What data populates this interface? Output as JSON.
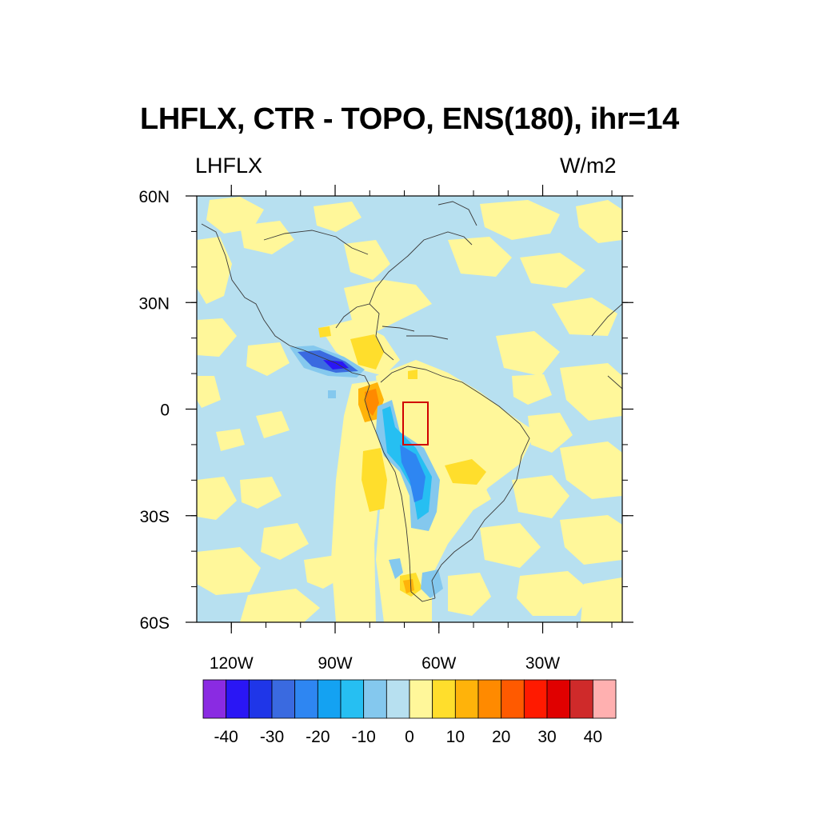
{
  "title": "LHFLX, CTR - TOPO, ENS(180), ihr=14",
  "left_subtitle": "LHFLX",
  "right_subtitle": "W/m2",
  "map": {
    "projection": "cylindrical equidistant",
    "lon_range": [
      -130,
      -7
    ],
    "lat_range": [
      -60,
      60
    ],
    "x_ticks": [
      {
        "lon": -120,
        "label": "120W"
      },
      {
        "lon": -90,
        "label": "90W"
      },
      {
        "lon": -60,
        "label": "60W"
      },
      {
        "lon": -30,
        "label": "30W"
      }
    ],
    "y_ticks": [
      {
        "lat": 60,
        "label": "60N"
      },
      {
        "lat": 30,
        "label": "30N"
      },
      {
        "lat": 0,
        "label": "0"
      },
      {
        "lat": -30,
        "label": "30S"
      },
      {
        "lat": -60,
        "label": "60S"
      }
    ],
    "highlight_box": {
      "lon_min": -72,
      "lon_max": -65,
      "lat_min": -10,
      "lat_max": 2,
      "color": "#d00000"
    },
    "background_pattern": "alternating light blue (0 to -5) and pale yellow (0 to 5) patches",
    "features": [
      {
        "name": "Pacific coast of Mexico negative anomaly",
        "min_level": -35
      },
      {
        "name": "Andes negative anomaly band",
        "min_level": -25
      },
      {
        "name": "Colombian coast positive anomaly",
        "max_level": 20
      },
      {
        "name": "Southeast Pacific positive anomaly",
        "max_level": 10
      },
      {
        "name": "Central America positive anomaly",
        "max_level": 10
      },
      {
        "name": "Southern Brazil positive anomaly",
        "max_level": 10
      },
      {
        "name": "Patagonia positive anomaly",
        "max_level": 10
      }
    ]
  },
  "colorbar": {
    "colors": [
      "#8a2be2",
      "#2a16f5",
      "#1f36e8",
      "#3a6ae0",
      "#2e86f2",
      "#14a2f2",
      "#26bff2",
      "#84c8ee",
      "#b7e0f0",
      "#fff79a",
      "#ffde2c",
      "#ffb30a",
      "#ff8a00",
      "#ff5a00",
      "#ff1a00",
      "#e00000",
      "#cf2a2a",
      "#ffb0b0"
    ],
    "labels": [
      "-40",
      "-30",
      "-20",
      "-10",
      "0",
      "10",
      "20",
      "30",
      "40"
    ]
  }
}
